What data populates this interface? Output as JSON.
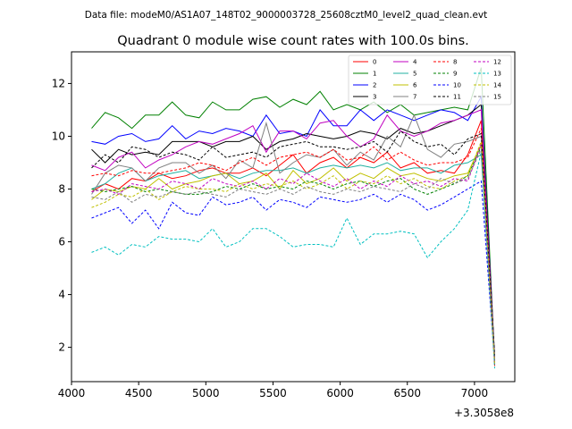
{
  "header": {
    "suptitle": "Data file: modeM0/AS1A07_148T02_9000003728_25608cztM0_level2_quad_clean.evt"
  },
  "chart_data": {
    "type": "line",
    "title": "Quadrant 0 module wise count rates with 100.0s bins.",
    "xlabel": "",
    "ylabel": "",
    "x_offset_text": "+3.3058e8",
    "xlim": [
      4000,
      7300
    ],
    "ylim": [
      0.7,
      13.2
    ],
    "xticks": [
      4000,
      4500,
      5000,
      5500,
      6000,
      6500,
      7000
    ],
    "yticks": [
      2,
      4,
      6,
      8,
      10,
      12
    ],
    "grid": false,
    "legend_position": "top-right",
    "x": [
      4150,
      4250,
      4350,
      4450,
      4550,
      4650,
      4750,
      4850,
      4950,
      5050,
      5150,
      5250,
      5350,
      5450,
      5550,
      5650,
      5750,
      5850,
      5950,
      6050,
      6150,
      6250,
      6350,
      6450,
      6550,
      6650,
      6750,
      6850,
      6950,
      7050,
      7150
    ],
    "series": [
      {
        "name": "0",
        "color": "#ff0000",
        "dash": false,
        "values": [
          7.9,
          8.2,
          8.0,
          8.4,
          8.3,
          8.6,
          8.4,
          8.5,
          8.7,
          8.8,
          8.6,
          8.6,
          8.8,
          8.5,
          8.9,
          9.3,
          8.6,
          9.0,
          9.2,
          8.8,
          9.2,
          9.0,
          9.4,
          8.8,
          9.0,
          8.6,
          8.7,
          8.6,
          9.3,
          10.6,
          1.3
        ]
      },
      {
        "name": "1",
        "color": "#008000",
        "dash": false,
        "values": [
          10.3,
          10.9,
          10.7,
          10.3,
          10.8,
          10.8,
          11.3,
          10.8,
          10.7,
          11.3,
          11.0,
          11.0,
          11.4,
          11.5,
          11.1,
          11.4,
          11.2,
          11.7,
          11.0,
          11.2,
          11.0,
          11.3,
          10.9,
          11.2,
          10.8,
          10.9,
          11.0,
          11.1,
          11.0,
          12.6,
          1.4
        ]
      },
      {
        "name": "2",
        "color": "#0000ff",
        "dash": false,
        "values": [
          9.8,
          9.7,
          10.0,
          10.1,
          9.8,
          9.9,
          10.4,
          9.9,
          10.2,
          10.1,
          10.3,
          10.2,
          10.0,
          10.8,
          10.1,
          10.2,
          10.0,
          11.0,
          10.4,
          10.4,
          11.0,
          10.6,
          11.0,
          10.8,
          10.6,
          10.8,
          11.0,
          10.9,
          10.6,
          11.5,
          1.5
        ]
      },
      {
        "name": "3",
        "color": "#000000",
        "dash": false,
        "values": [
          9.5,
          9.0,
          9.5,
          9.3,
          9.4,
          9.3,
          9.8,
          9.8,
          9.8,
          9.6,
          9.8,
          9.8,
          10.0,
          9.5,
          9.8,
          9.9,
          10.1,
          10.0,
          9.9,
          10.0,
          10.2,
          10.1,
          9.9,
          10.3,
          10.1,
          10.2,
          10.4,
          10.6,
          10.8,
          11.2,
          1.6
        ]
      },
      {
        "name": "4",
        "color": "#c000c0",
        "dash": false,
        "values": [
          8.9,
          8.7,
          9.2,
          9.4,
          8.8,
          9.1,
          9.3,
          9.6,
          9.8,
          9.7,
          9.9,
          10.1,
          10.4,
          9.4,
          10.2,
          10.2,
          9.9,
          10.5,
          10.6,
          10.0,
          9.6,
          9.9,
          10.8,
          10.2,
          10.0,
          10.2,
          10.5,
          10.6,
          10.8,
          11.0,
          1.5
        ]
      },
      {
        "name": "5",
        "color": "#20b0a0",
        "dash": false,
        "values": [
          8.0,
          8.2,
          8.6,
          8.8,
          8.3,
          8.5,
          8.6,
          8.7,
          8.4,
          8.5,
          8.6,
          8.4,
          8.6,
          8.7,
          8.7,
          8.8,
          8.6,
          8.8,
          8.9,
          8.8,
          8.9,
          8.8,
          9.0,
          8.7,
          8.8,
          8.8,
          8.6,
          8.9,
          9.0,
          9.3,
          1.4
        ]
      },
      {
        "name": "6",
        "color": "#c0c000",
        "dash": false,
        "values": [
          7.6,
          8.0,
          7.9,
          8.1,
          8.0,
          8.4,
          8.0,
          8.2,
          8.3,
          8.5,
          8.6,
          8.2,
          8.3,
          8.6,
          8.0,
          8.7,
          8.2,
          8.4,
          8.8,
          8.3,
          8.6,
          8.4,
          8.8,
          8.5,
          8.6,
          8.4,
          8.3,
          8.5,
          8.6,
          9.7,
          1.4
        ]
      },
      {
        "name": "7",
        "color": "#808080",
        "dash": false,
        "values": [
          7.8,
          8.6,
          8.9,
          8.8,
          8.3,
          8.8,
          9.0,
          9.0,
          8.6,
          8.9,
          8.4,
          9.1,
          8.8,
          10.5,
          8.6,
          9.0,
          9.3,
          9.2,
          9.5,
          8.9,
          9.4,
          9.1,
          10.0,
          9.6,
          10.8,
          9.5,
          9.2,
          9.7,
          9.8,
          10.0,
          1.5
        ]
      },
      {
        "name": "8",
        "color": "#ff0000",
        "dash": true,
        "values": [
          8.5,
          8.6,
          8.5,
          8.7,
          8.6,
          8.6,
          8.7,
          8.8,
          9.0,
          8.9,
          8.7,
          9.0,
          9.2,
          8.9,
          9.2,
          9.3,
          9.4,
          9.2,
          9.5,
          9.1,
          9.2,
          9.6,
          9.1,
          9.4,
          9.1,
          8.9,
          9.0,
          9.0,
          9.2,
          10.3,
          1.3
        ]
      },
      {
        "name": "9",
        "color": "#008000",
        "dash": true,
        "values": [
          8.0,
          7.9,
          8.0,
          8.1,
          7.9,
          8.0,
          7.9,
          7.8,
          7.8,
          7.9,
          8.1,
          8.0,
          8.2,
          8.0,
          8.1,
          8.0,
          8.3,
          8.2,
          8.0,
          8.2,
          8.3,
          8.1,
          8.3,
          8.4,
          8.0,
          7.8,
          8.0,
          8.2,
          8.5,
          9.6,
          1.4
        ]
      },
      {
        "name": "10",
        "color": "#0000ff",
        "dash": true,
        "values": [
          6.9,
          7.1,
          7.3,
          6.7,
          7.2,
          6.5,
          7.5,
          7.1,
          7.0,
          7.7,
          7.4,
          7.5,
          7.7,
          7.2,
          7.6,
          7.5,
          7.3,
          7.7,
          7.6,
          7.5,
          7.6,
          7.8,
          7.5,
          7.8,
          7.6,
          7.2,
          7.4,
          7.7,
          8.0,
          8.3,
          1.4
        ]
      },
      {
        "name": "11",
        "color": "#000000",
        "dash": true,
        "values": [
          8.8,
          9.3,
          9.0,
          9.6,
          9.5,
          9.2,
          9.4,
          9.3,
          9.1,
          9.6,
          9.2,
          9.3,
          9.4,
          9.2,
          9.6,
          9.7,
          9.8,
          9.6,
          9.6,
          9.5,
          9.6,
          9.8,
          9.4,
          10.2,
          9.8,
          9.6,
          9.7,
          9.3,
          9.9,
          10.1,
          1.7
        ]
      },
      {
        "name": "12",
        "color": "#c000c0",
        "dash": true,
        "values": [
          7.9,
          8.0,
          7.8,
          8.2,
          8.1,
          8.0,
          8.3,
          8.2,
          8.0,
          8.4,
          8.2,
          8.1,
          8.3,
          8.0,
          8.4,
          8.2,
          8.6,
          8.3,
          8.1,
          8.4,
          8.0,
          8.3,
          8.1,
          8.5,
          8.2,
          8.3,
          8.1,
          8.4,
          8.3,
          9.7,
          1.4
        ]
      },
      {
        "name": "13",
        "color": "#00c0c0",
        "dash": true,
        "values": [
          5.6,
          5.8,
          5.5,
          5.9,
          5.8,
          6.2,
          6.1,
          6.1,
          6.0,
          6.5,
          5.8,
          6.0,
          6.5,
          6.5,
          6.2,
          5.8,
          5.9,
          5.9,
          5.8,
          6.9,
          5.9,
          6.3,
          6.3,
          6.4,
          6.3,
          5.4,
          6.0,
          6.5,
          7.2,
          9.4,
          1.2
        ]
      },
      {
        "name": "14",
        "color": "#c0c000",
        "dash": true,
        "values": [
          7.3,
          7.5,
          7.8,
          7.7,
          8.0,
          7.6,
          7.9,
          8.1,
          8.0,
          8.0,
          7.9,
          8.2,
          8.0,
          8.2,
          8.1,
          8.3,
          8.0,
          8.2,
          8.5,
          8.0,
          8.3,
          8.2,
          8.5,
          8.2,
          8.4,
          8.1,
          8.0,
          8.3,
          8.5,
          9.8,
          1.4
        ]
      },
      {
        "name": "15",
        "color": "#808080",
        "dash": true,
        "values": [
          7.7,
          7.6,
          7.9,
          7.5,
          7.8,
          7.7,
          7.9,
          7.8,
          7.9,
          7.8,
          7.7,
          8.0,
          7.9,
          7.8,
          8.0,
          7.8,
          8.1,
          7.9,
          7.8,
          8.0,
          7.9,
          8.1,
          8.0,
          7.9,
          8.2,
          8.0,
          8.4,
          8.2,
          8.4,
          9.5,
          1.4
        ]
      }
    ]
  }
}
